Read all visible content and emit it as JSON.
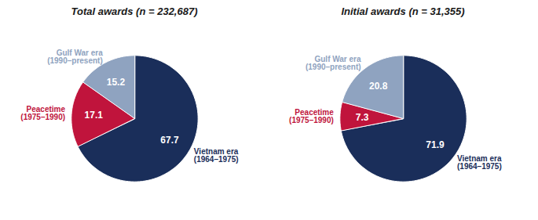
{
  "chart_data": [
    {
      "type": "pie",
      "title": "Total awards (n = 232,687)",
      "categories": [
        "Vietnam era\n(1964–1975)",
        "Peacetime\n(1975–1990)",
        "Gulf War era\n(1990–present)"
      ],
      "values": [
        67.7,
        17.1,
        15.2
      ],
      "colors": [
        "#1a2e5a",
        "#c0143c",
        "#8fa3c0"
      ],
      "data_labels": true
    },
    {
      "type": "pie",
      "title": "Initial awards (n = 31,355)",
      "categories": [
        "Vietnam era\n(1964–1975)",
        "Peacetime\n(1975–1990)",
        "Gulf War era\n(1990–present)"
      ],
      "values": [
        71.9,
        7.3,
        20.8
      ],
      "colors": [
        "#1a2e5a",
        "#c0143c",
        "#8fa3c0"
      ],
      "data_labels": true
    }
  ]
}
